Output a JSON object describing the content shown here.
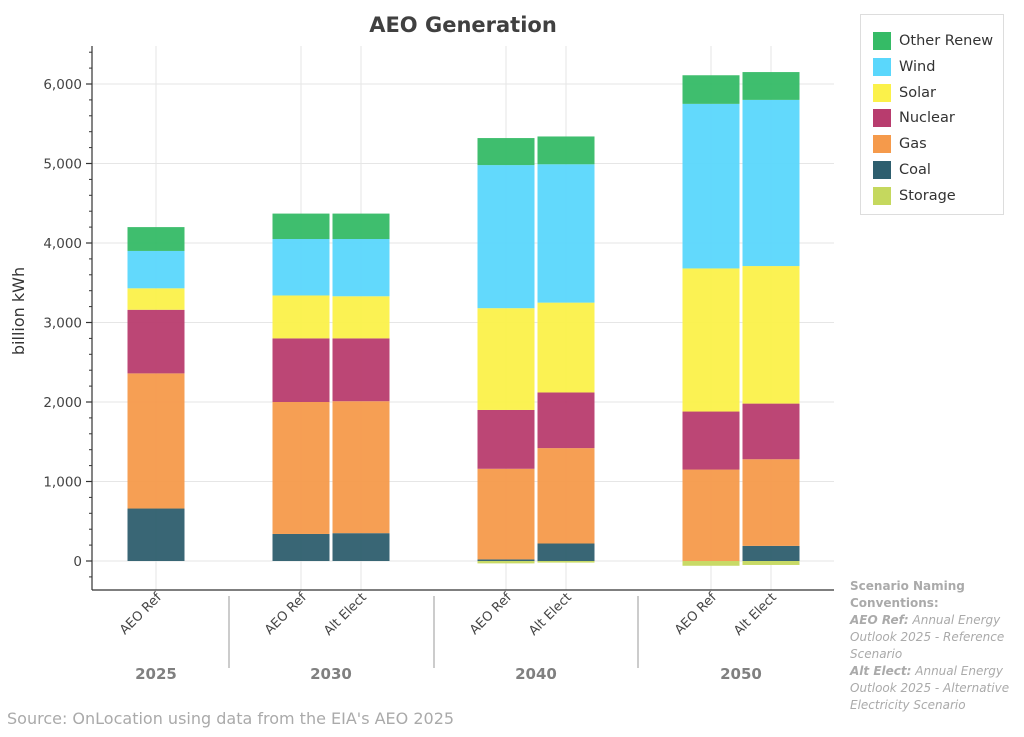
{
  "chart_data": {
    "type": "bar",
    "stacked": true,
    "title": "AEO Generation",
    "ylabel": "billion kWh",
    "ylim": [
      -200,
      6500
    ],
    "yticks": [
      0,
      1000,
      2000,
      3000,
      4000,
      5000,
      6000
    ],
    "ytick_labels": [
      "0",
      "1,000",
      "2,000",
      "3,000",
      "4,000",
      "5,000",
      "6,000"
    ],
    "grid": true,
    "legend_position": "top-right, outside plot",
    "groups": [
      "2025",
      "2030",
      "2040",
      "2050"
    ],
    "categories": [
      {
        "group": "2025",
        "label": "AEO Ref"
      },
      {
        "group": "2030",
        "label": "AEO Ref"
      },
      {
        "group": "2030",
        "label": "Alt Elect"
      },
      {
        "group": "2040",
        "label": "AEO Ref"
      },
      {
        "group": "2040",
        "label": "Alt Elect"
      },
      {
        "group": "2050",
        "label": "AEO Ref"
      },
      {
        "group": "2050",
        "label": "Alt Elect"
      }
    ],
    "series": [
      {
        "name": "Storage",
        "color": "#c5d85e",
        "values": [
          0,
          0,
          0,
          -30,
          -20,
          -60,
          -50
        ]
      },
      {
        "name": "Coal",
        "color": "#2e5e6e",
        "values": [
          660,
          340,
          350,
          20,
          220,
          0,
          190
        ]
      },
      {
        "name": "Gas",
        "color": "#f59a4b",
        "values": [
          1700,
          1660,
          1660,
          1140,
          1200,
          1150,
          1090
        ]
      },
      {
        "name": "Nuclear",
        "color": "#b83c6e",
        "values": [
          800,
          800,
          790,
          740,
          700,
          730,
          700
        ]
      },
      {
        "name": "Solar",
        "color": "#fbf14a",
        "values": [
          270,
          540,
          530,
          1280,
          1130,
          1800,
          1730
        ]
      },
      {
        "name": "Wind",
        "color": "#5ad7fc",
        "values": [
          470,
          710,
          720,
          1800,
          1740,
          2070,
          2090
        ]
      },
      {
        "name": "Other Renew",
        "color": "#35bb66",
        "values": [
          300,
          320,
          320,
          340,
          350,
          360,
          350
        ]
      }
    ]
  },
  "legend": {
    "items": [
      {
        "label": "Other Renew",
        "color": "#35bb66"
      },
      {
        "label": "Wind",
        "color": "#5ad7fc"
      },
      {
        "label": "Solar",
        "color": "#fbf14a"
      },
      {
        "label": "Nuclear",
        "color": "#b83c6e"
      },
      {
        "label": "Gas",
        "color": "#f59a4b"
      },
      {
        "label": "Coal",
        "color": "#2e5e6e"
      },
      {
        "label": "Storage",
        "color": "#c5d85e"
      }
    ]
  },
  "source": "Source: OnLocation using data from the EIA's AEO 2025",
  "notes": {
    "heading": "Scenario Naming Conventions:",
    "ref_key": "AEO Ref:",
    "ref_desc": "Annual Energy Outlook 2025 - Reference Scenario",
    "alt_key": "Alt Elect:",
    "alt_desc": "Annual Energy Outlook 2025 - Alternative Electricity Scenario"
  }
}
